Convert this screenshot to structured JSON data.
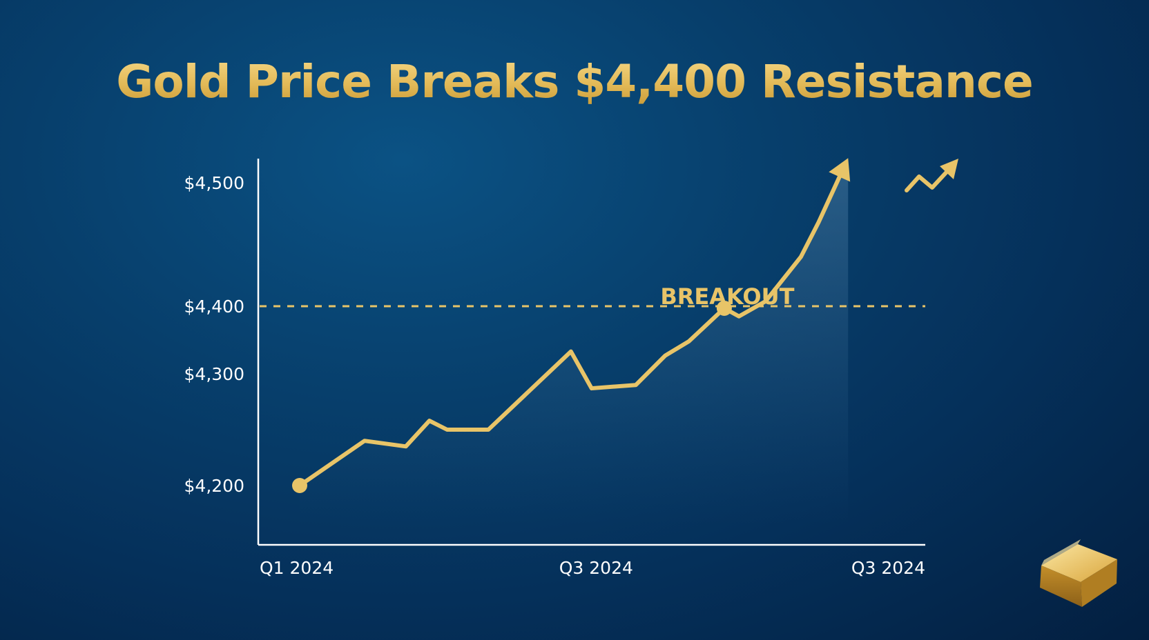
{
  "title": "Gold Price Breaks $4,400 Resistance",
  "colors": {
    "gold": "#e8c468",
    "gold_dark": "#c99a35",
    "background": "#063a66",
    "axis": "#ffffff"
  },
  "chart_data": {
    "type": "line",
    "title": "Gold Price Breaks $4,400 Resistance",
    "xlabel": "",
    "ylabel": "",
    "y_ticks": [
      {
        "value": 4200,
        "label": "$4,200"
      },
      {
        "value": 4300,
        "label": "$4,300"
      },
      {
        "value": 4400,
        "label": "$4,400"
      },
      {
        "value": 4500,
        "label": "$4,500"
      }
    ],
    "x_ticks": [
      {
        "position": 0,
        "label": "Q1 2024"
      },
      {
        "position": 0.49,
        "label": "Q3 2024"
      },
      {
        "position": 1,
        "label": "Q3 2024"
      }
    ],
    "grid": false,
    "series": [
      {
        "values": [
          {
            "x": 0,
            "y": 4200
          },
          {
            "x": 0.11,
            "y": 4240
          },
          {
            "x": 0.18,
            "y": 4235
          },
          {
            "x": 0.22,
            "y": 4258
          },
          {
            "x": 0.25,
            "y": 4250
          },
          {
            "x": 0.32,
            "y": 4250
          },
          {
            "x": 0.46,
            "y": 4333
          },
          {
            "x": 0.495,
            "y": 4287
          },
          {
            "x": 0.57,
            "y": 4290
          },
          {
            "x": 0.62,
            "y": 4327
          },
          {
            "x": 0.66,
            "y": 4348
          },
          {
            "x": 0.72,
            "y": 4397
          },
          {
            "x": 0.745,
            "y": 4385
          },
          {
            "x": 0.79,
            "y": 4404
          },
          {
            "x": 0.85,
            "y": 4440
          },
          {
            "x": 0.88,
            "y": 4468
          },
          {
            "x": 0.93,
            "y": 4520
          }
        ]
      }
    ],
    "markers": [
      {
        "x": 0,
        "y": 4200
      },
      {
        "x": 0.72,
        "y": 4397
      }
    ],
    "reference_line": {
      "y": 4400,
      "style": "dashed"
    },
    "annotations": [
      {
        "text": "BREAKOUT",
        "x": 0.6,
        "y": 4415
      }
    ]
  },
  "icons": {
    "trend_arrow": "zigzag-up-arrow-icon",
    "gold_bar": "gold-bar-icon"
  }
}
